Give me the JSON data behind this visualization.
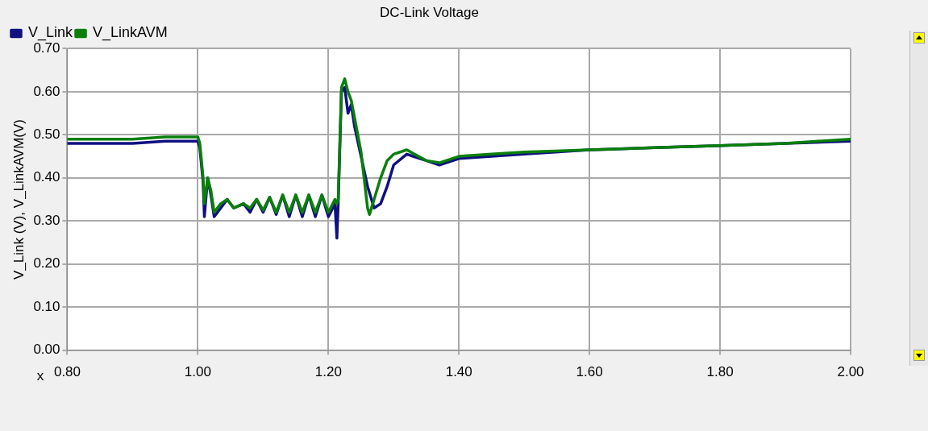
{
  "chart_data": {
    "type": "line",
    "title": "DC-Link Voltage",
    "xlabel": "x",
    "ylabel": "V_Link (V), V_LinkAVM(V)",
    "xlim": [
      0.8,
      2.0
    ],
    "xticks": [
      {
        "value": 0.8,
        "label": "0.80"
      },
      {
        "value": 1.0,
        "label": "1.00"
      },
      {
        "value": 1.2,
        "label": "1.20"
      },
      {
        "value": 1.4,
        "label": "1.40"
      },
      {
        "value": 1.6,
        "label": "1.60"
      },
      {
        "value": 1.8,
        "label": "1.80"
      },
      {
        "value": 2.0,
        "label": "2.00"
      }
    ],
    "ylim": [
      0,
      0.7
    ],
    "yticks": [
      {
        "value": 0,
        "label": "0.00"
      },
      {
        "value": 0.1,
        "label": "0.10"
      },
      {
        "value": 0.2,
        "label": "0.20"
      },
      {
        "value": 0.3,
        "label": "0.30"
      },
      {
        "value": 0.4,
        "label": "0.40"
      },
      {
        "value": 0.5,
        "label": "0.50"
      },
      {
        "value": 0.6,
        "label": "0.60"
      },
      {
        "value": 0.7,
        "label": "0.70"
      }
    ],
    "grid": true,
    "legend": "top",
    "marker": "none",
    "line_style": "solid",
    "series": [
      {
        "name": "V_Link",
        "color": "#101080",
        "x": [
          0.8,
          0.85,
          0.9,
          0.95,
          1.0,
          1.003,
          1.008,
          1.01,
          1.015,
          1.02,
          1.025,
          1.035,
          1.045,
          1.055,
          1.07,
          1.08,
          1.09,
          1.1,
          1.11,
          1.12,
          1.13,
          1.14,
          1.15,
          1.16,
          1.17,
          1.18,
          1.19,
          1.2,
          1.21,
          1.213,
          1.215,
          1.22,
          1.225,
          1.23,
          1.235,
          1.24,
          1.25,
          1.26,
          1.27,
          1.28,
          1.29,
          1.3,
          1.32,
          1.35,
          1.37,
          1.4,
          1.45,
          1.5,
          1.6,
          1.7,
          1.8,
          1.9,
          2.0
        ],
        "values": [
          0.48,
          0.48,
          0.48,
          0.485,
          0.485,
          0.47,
          0.39,
          0.31,
          0.4,
          0.36,
          0.31,
          0.33,
          0.35,
          0.33,
          0.34,
          0.32,
          0.35,
          0.32,
          0.355,
          0.315,
          0.36,
          0.31,
          0.36,
          0.31,
          0.36,
          0.31,
          0.36,
          0.31,
          0.34,
          0.26,
          0.34,
          0.6,
          0.61,
          0.55,
          0.57,
          0.52,
          0.45,
          0.38,
          0.33,
          0.34,
          0.38,
          0.43,
          0.455,
          0.44,
          0.43,
          0.445,
          0.45,
          0.455,
          0.465,
          0.47,
          0.475,
          0.48,
          0.485
        ]
      },
      {
        "name": "V_LinkAVM",
        "color": "#0a7f0a",
        "x": [
          0.8,
          0.85,
          0.9,
          0.95,
          1.0,
          1.003,
          1.008,
          1.01,
          1.015,
          1.02,
          1.025,
          1.035,
          1.045,
          1.055,
          1.07,
          1.08,
          1.09,
          1.1,
          1.11,
          1.12,
          1.13,
          1.14,
          1.15,
          1.16,
          1.17,
          1.18,
          1.19,
          1.2,
          1.21,
          1.213,
          1.215,
          1.22,
          1.225,
          1.23,
          1.235,
          1.24,
          1.25,
          1.26,
          1.263,
          1.27,
          1.28,
          1.29,
          1.3,
          1.32,
          1.35,
          1.37,
          1.4,
          1.45,
          1.5,
          1.6,
          1.7,
          1.8,
          1.9,
          2.0
        ],
        "values": [
          0.49,
          0.49,
          0.49,
          0.495,
          0.495,
          0.48,
          0.4,
          0.34,
          0.4,
          0.37,
          0.32,
          0.34,
          0.35,
          0.33,
          0.34,
          0.33,
          0.35,
          0.325,
          0.355,
          0.32,
          0.36,
          0.32,
          0.36,
          0.32,
          0.36,
          0.32,
          0.36,
          0.32,
          0.35,
          0.34,
          0.35,
          0.61,
          0.63,
          0.6,
          0.58,
          0.54,
          0.46,
          0.33,
          0.315,
          0.35,
          0.4,
          0.44,
          0.455,
          0.465,
          0.44,
          0.435,
          0.45,
          0.455,
          0.46,
          0.465,
          0.47,
          0.475,
          0.48,
          0.49
        ]
      }
    ]
  }
}
